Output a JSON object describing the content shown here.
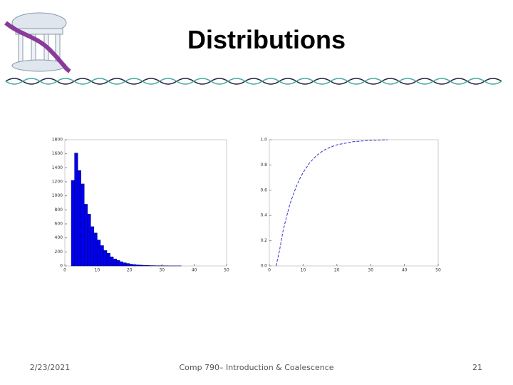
{
  "title": "Distributions",
  "footer": {
    "date": "2/23/2021",
    "course": "Comp 790– Introduction & Coalescence",
    "page": "21"
  },
  "chart_data": [
    {
      "type": "histogram",
      "color": "#0000ee",
      "bins": [
        2,
        3,
        4,
        5,
        6,
        7,
        8,
        9,
        10,
        11,
        12,
        13,
        14,
        15,
        16,
        17,
        18,
        19,
        20,
        21,
        22,
        23,
        24,
        25,
        26,
        27,
        28,
        29,
        30,
        31,
        32,
        33,
        34,
        35,
        36
      ],
      "values": [
        1220,
        1610,
        1360,
        1170,
        880,
        740,
        560,
        470,
        370,
        290,
        220,
        180,
        130,
        100,
        80,
        60,
        45,
        35,
        25,
        20,
        15,
        12,
        9,
        7,
        5,
        4,
        3,
        3,
        2,
        2,
        1,
        1,
        1,
        1
      ],
      "xlim": [
        0,
        50
      ],
      "xticks": [
        0,
        10,
        20,
        30,
        40,
        50
      ],
      "ylim": [
        0,
        1800
      ],
      "yticks": [
        0,
        200,
        400,
        600,
        800,
        1000,
        1200,
        1400,
        1600,
        1800
      ]
    },
    {
      "type": "line",
      "color": "#3333cc",
      "x": [
        2,
        3,
        4,
        5,
        6,
        7,
        8,
        9,
        10,
        12,
        14,
        16,
        18,
        20,
        25,
        30,
        35
      ],
      "values": [
        0,
        0.12,
        0.27,
        0.38,
        0.48,
        0.56,
        0.63,
        0.69,
        0.74,
        0.82,
        0.875,
        0.915,
        0.94,
        0.96,
        0.985,
        0.995,
        1.0
      ],
      "xlim": [
        0,
        50
      ],
      "xticks": [
        0,
        10,
        20,
        30,
        40,
        50
      ],
      "ylim": [
        0,
        1
      ],
      "yticks": [
        {
          "value": 0,
          "label": "0.0"
        },
        0.2,
        0.4,
        0.6,
        0.8,
        {
          "value": 1,
          "label": "1.0"
        }
      ]
    }
  ]
}
